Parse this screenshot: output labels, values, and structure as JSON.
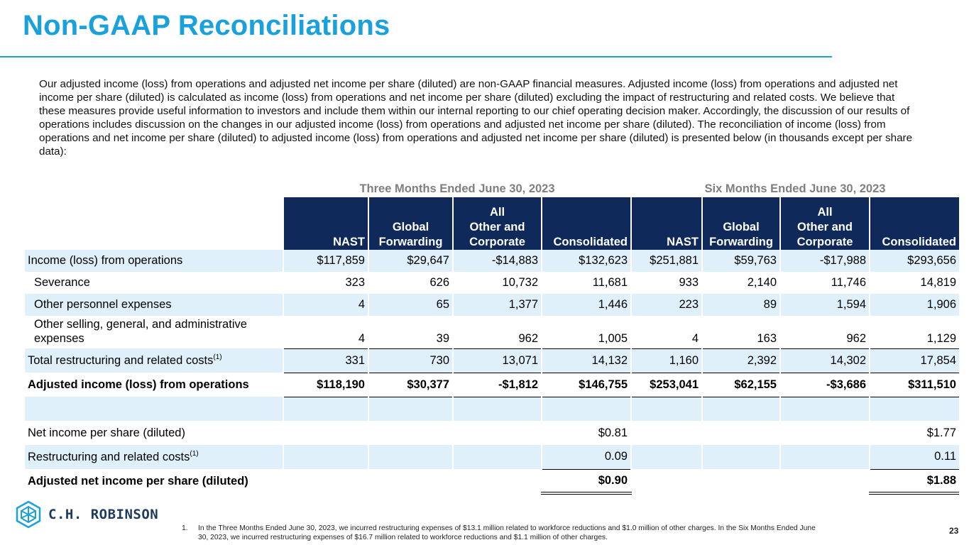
{
  "page": {
    "title": "Non-GAAP Reconciliations",
    "intro": "Our adjusted income (loss) from operations and adjusted net income per share (diluted) are non-GAAP financial measures. Adjusted income (loss) from operations and adjusted net income per share (diluted) is calculated as income (loss) from operations and net income per share (diluted) excluding the impact of restructuring and related costs. We believe that these measures provide useful information to investors and include them within our internal reporting to our chief operating decision maker. Accordingly, the discussion of our results of operations includes discussion on the changes in our adjusted income (loss) from operations and adjusted net income per share (diluted). The reconciliation of income (loss) from operations and net income per share (diluted) to adjusted income (loss) from operations and adjusted net income per share (diluted) is presented below (in thousands except per share data):",
    "page_number": "23"
  },
  "table": {
    "group_three": "Three Months Ended June 30, 2023",
    "group_six": "Six Months Ended June 30, 2023",
    "col_nast": "NAST",
    "col_gf_1": "Global",
    "col_gf_2": "Forwarding",
    "col_aoc_1": "All",
    "col_aoc_2": "Other and",
    "col_aoc_3": "Corporate",
    "col_cons": "Consolidated",
    "rows": [
      {
        "label": "Income (loss) from operations",
        "v": [
          "$117,859",
          "$29,647",
          "-$14,883",
          "$132,623",
          "$251,881",
          "$59,763",
          "-$17,988",
          "$293,656"
        ]
      },
      {
        "label": "Severance",
        "v": [
          "323",
          "626",
          "10,732",
          "11,681",
          "933",
          "2,140",
          "11,746",
          "14,819"
        ]
      },
      {
        "label": "Other personnel expenses",
        "v": [
          "4",
          "65",
          "1,377",
          "1,446",
          "223",
          "89",
          "1,594",
          "1,906"
        ]
      },
      {
        "label_1": "Other selling, general, and administrative",
        "label_2": "expenses",
        "v": [
          "4",
          "39",
          "962",
          "1,005",
          "4",
          "163",
          "962",
          "1,129"
        ]
      },
      {
        "label": "Total restructuring and related costs",
        "sup": "(1)",
        "v": [
          "331",
          "730",
          "13,071",
          "14,132",
          "1,160",
          "2,392",
          "14,302",
          "17,854"
        ]
      },
      {
        "label": "Adjusted income (loss) from operations",
        "v": [
          "$118,190",
          "$30,377",
          "-$1,812",
          "$146,755",
          "$253,041",
          "$62,155",
          "-$3,686",
          "$311,510"
        ]
      }
    ],
    "eps_rows": [
      {
        "label": "Net income per share (diluted)",
        "three": "$0.81",
        "six": "$1.77"
      },
      {
        "label": "Restructuring and related costs",
        "sup": "(1)",
        "three": "0.09",
        "six": "0.11"
      },
      {
        "label": "Adjusted net income per share (diluted)",
        "three": "$0.90",
        "six": "$1.88"
      }
    ]
  },
  "logo": {
    "text": "C.H. ROBINSON"
  },
  "footnote": {
    "number": "1.",
    "text": "In the Three Months Ended June 30, 2023, we incurred restructuring expenses of $13.1 million related to workforce reductions and $1.0 million of other charges. In the Six Months Ended June 30, 2023, we incurred restructuring expenses of $16.7 million related to workforce reductions and $1.1 million of other charges."
  },
  "colors": {
    "accent": "#1aa0db",
    "header_navy": "#0f2a5a",
    "row_shade": "#dff0fa",
    "group_gray": "#7f7f7f"
  }
}
